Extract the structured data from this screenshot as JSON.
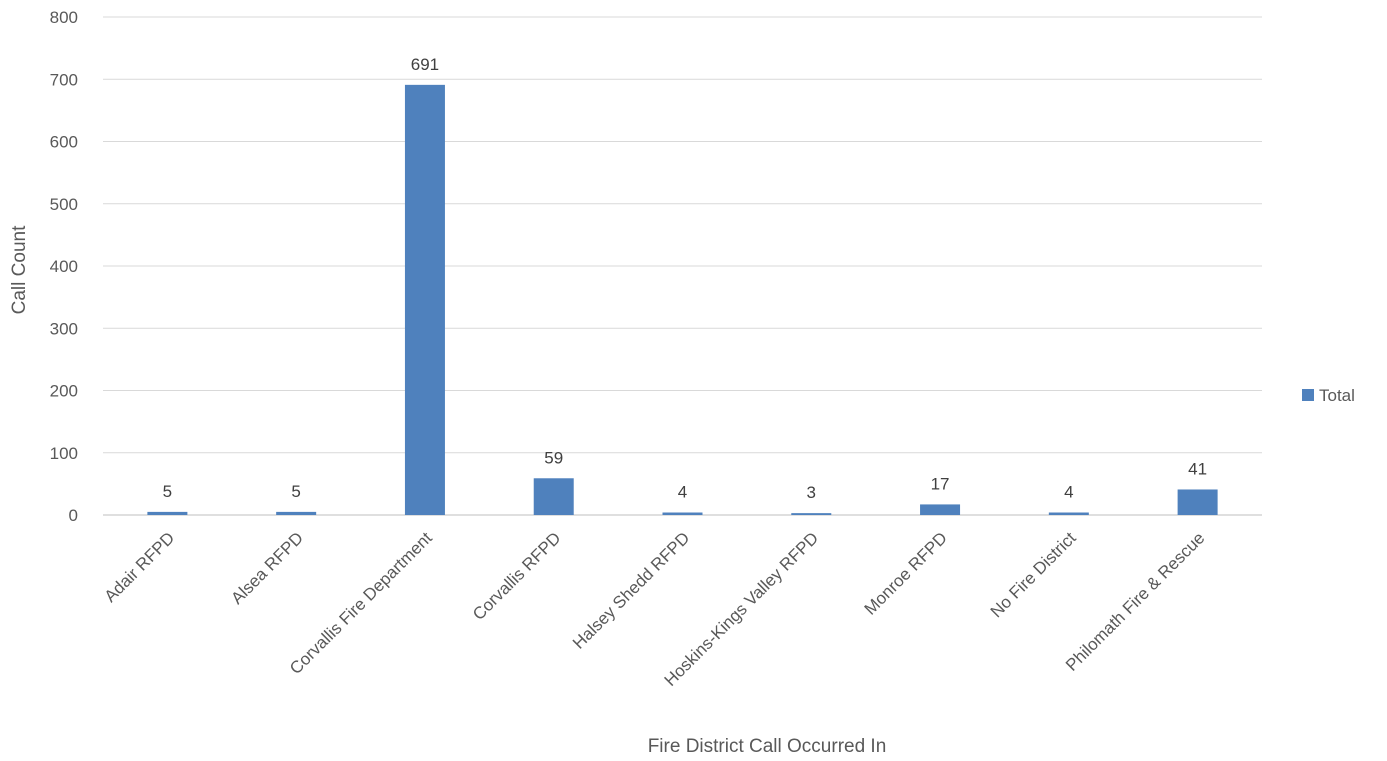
{
  "chart_data": {
    "type": "bar",
    "title": "",
    "xlabel": "Fire District Call Occurred In",
    "ylabel": "Call Count",
    "ylim": [
      0,
      800
    ],
    "yticks": [
      0,
      100,
      200,
      300,
      400,
      500,
      600,
      700,
      800
    ],
    "grid": true,
    "legend_position": "right",
    "categories": [
      "Adair RFPD",
      "Alsea RFPD",
      "Corvallis Fire Department",
      "Corvallis RFPD",
      "Halsey Shedd RFPD",
      "Hoskins-Kings Valley RFPD",
      "Monroe RFPD",
      "No Fire District",
      "Philomath Fire & Rescue"
    ],
    "series": [
      {
        "name": "Total",
        "values": [
          5,
          5,
          691,
          59,
          4,
          3,
          17,
          4,
          41
        ],
        "color": "#4f81bd"
      }
    ],
    "colors": {
      "grid": "#d9d9d9",
      "text": "#595959",
      "data_label": "#404040"
    }
  }
}
